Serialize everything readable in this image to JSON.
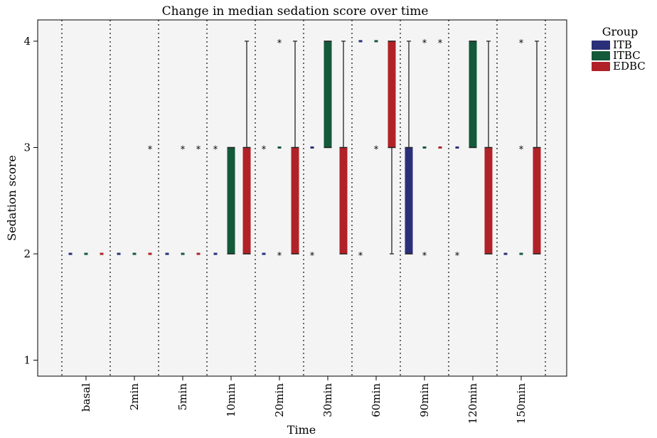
{
  "chart_data": {
    "type": "box",
    "title": "Change in median sedation score over time",
    "xlabel": "Time",
    "ylabel": "Sedation score",
    "categories": [
      "basal",
      "2min",
      "5min",
      "10min",
      "20min",
      "30min",
      "60min",
      "90min",
      "120min",
      "150min"
    ],
    "ylim": [
      0.85,
      4.2
    ],
    "yticks": [
      1,
      2,
      3,
      4
    ],
    "legend": {
      "title": "Group",
      "position": "right"
    },
    "series": [
      {
        "name": "ITB",
        "color": "#2b2f7a",
        "boxes": [
          {
            "q1": 2,
            "q3": 2,
            "low": 2,
            "high": 2,
            "outliers": []
          },
          {
            "q1": 2,
            "q3": 2,
            "low": 2,
            "high": 2,
            "outliers": []
          },
          {
            "q1": 2,
            "q3": 2,
            "low": 2,
            "high": 2,
            "outliers": []
          },
          {
            "q1": 2,
            "q3": 2,
            "low": 2,
            "high": 2,
            "outliers": [
              3
            ]
          },
          {
            "q1": 2,
            "q3": 2,
            "low": 2,
            "high": 2,
            "outliers": [
              3
            ]
          },
          {
            "q1": 3,
            "q3": 3,
            "low": 3,
            "high": 3,
            "outliers": [
              2
            ]
          },
          {
            "q1": 4,
            "q3": 4,
            "low": 4,
            "high": 4,
            "outliers": [
              2
            ]
          },
          {
            "q1": 2,
            "q3": 3,
            "low": 2,
            "high": 4,
            "outliers": []
          },
          {
            "q1": 3,
            "q3": 3,
            "low": 3,
            "high": 3,
            "outliers": [
              2
            ]
          },
          {
            "q1": 2,
            "q3": 2,
            "low": 2,
            "high": 2,
            "outliers": []
          }
        ]
      },
      {
        "name": "ITBC",
        "color": "#14593a",
        "boxes": [
          {
            "q1": 2,
            "q3": 2,
            "low": 2,
            "high": 2,
            "outliers": []
          },
          {
            "q1": 2,
            "q3": 2,
            "low": 2,
            "high": 2,
            "outliers": []
          },
          {
            "q1": 2,
            "q3": 2,
            "low": 2,
            "high": 2,
            "outliers": [
              3
            ]
          },
          {
            "q1": 2,
            "q3": 3,
            "low": 2,
            "high": 3,
            "outliers": []
          },
          {
            "q1": 3,
            "q3": 3,
            "low": 3,
            "high": 3,
            "outliers": [
              2,
              4
            ]
          },
          {
            "q1": 3,
            "q3": 4,
            "low": 3,
            "high": 4,
            "outliers": []
          },
          {
            "q1": 4,
            "q3": 4,
            "low": 4,
            "high": 4,
            "outliers": [
              3
            ]
          },
          {
            "q1": 3,
            "q3": 3,
            "low": 3,
            "high": 3,
            "outliers": [
              2,
              4
            ]
          },
          {
            "q1": 3,
            "q3": 4,
            "low": 3,
            "high": 4,
            "outliers": []
          },
          {
            "q1": 2,
            "q3": 2,
            "low": 2,
            "high": 2,
            "outliers": [
              3,
              4
            ]
          }
        ]
      },
      {
        "name": "EDBC",
        "color": "#b02228",
        "boxes": [
          {
            "q1": 2,
            "q3": 2,
            "low": 2,
            "high": 2,
            "outliers": []
          },
          {
            "q1": 2,
            "q3": 2,
            "low": 2,
            "high": 2,
            "outliers": [
              3
            ]
          },
          {
            "q1": 2,
            "q3": 2,
            "low": 2,
            "high": 2,
            "outliers": [
              3
            ]
          },
          {
            "q1": 2,
            "q3": 3,
            "low": 2,
            "high": 4,
            "outliers": []
          },
          {
            "q1": 2,
            "q3": 3,
            "low": 2,
            "high": 4,
            "outliers": []
          },
          {
            "q1": 2,
            "q3": 3,
            "low": 2,
            "high": 4,
            "outliers": []
          },
          {
            "q1": 3,
            "q3": 4,
            "low": 2,
            "high": 4,
            "outliers": []
          },
          {
            "q1": 3,
            "q3": 3,
            "low": 3,
            "high": 3,
            "outliers": [
              4
            ]
          },
          {
            "q1": 2,
            "q3": 3,
            "low": 2,
            "high": 4,
            "outliers": []
          },
          {
            "q1": 2,
            "q3": 3,
            "low": 2,
            "high": 4,
            "outliers": []
          }
        ]
      }
    ],
    "grid": "vertical-dotted"
  }
}
